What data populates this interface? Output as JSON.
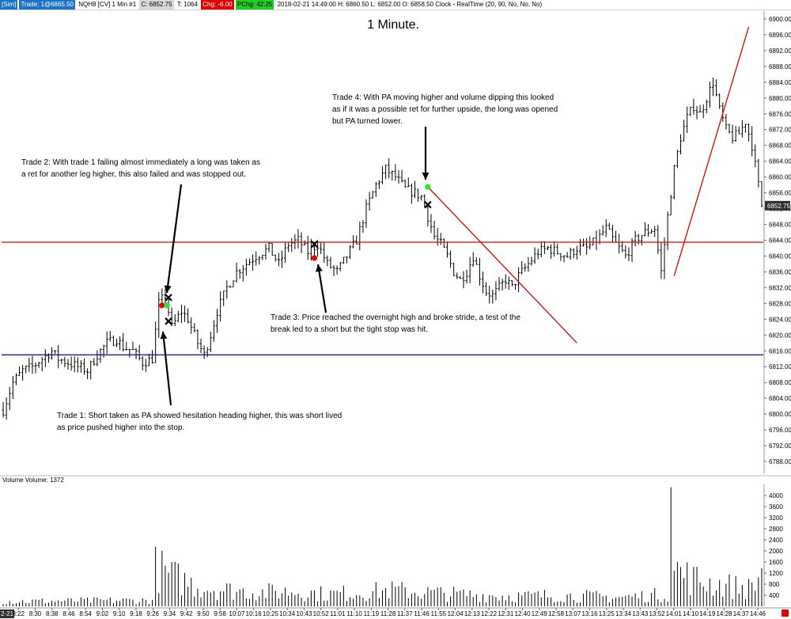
{
  "header": {
    "sim_label": "[Sim]",
    "trade_label": "Trade: 1@6865.50",
    "instrument": "NQH8 [CV]  1 Min  #1",
    "close_badge": "C: 6852.75",
    "tick": "T: 1064",
    "chg_badge": "Chg: -6.00",
    "pchg_badge": "PChg: 42.25",
    "bar_info": "2018-02-21 14:49:00  H: 6860.50  L: 6852.00  O: 6858.50  Clock - RealTime  (20, 90, No, No, No)"
  },
  "colors": {
    "price_line": "#000000",
    "red_line": "#e00000",
    "blue_line": "#0000cc",
    "green_dot": "#22ee22",
    "red_dot": "#ee0000",
    "current_price_bg": "#303030"
  },
  "chart_data": {
    "type": "candlestick",
    "title": "1 Minute.",
    "y_ticks": [
      "6900.00",
      "6896.00",
      "6892.00",
      "6888.00",
      "6884.00",
      "6880.00",
      "6876.00",
      "6872.00",
      "6868.00",
      "6864.00",
      "6860.00",
      "6856.00",
      "6852.00",
      "6848.00",
      "6844.00",
      "6840.00",
      "6836.00",
      "6832.00",
      "6828.00",
      "6824.00",
      "6820.00",
      "6816.00",
      "6812.00",
      "6808.00",
      "6804.00",
      "6800.00",
      "6796.00",
      "6792.00",
      "6788.00"
    ],
    "ylim": [
      6785,
      6902
    ],
    "current_price": "6852.75",
    "x_ticks": [
      "2-21",
      "8:22",
      "8:30",
      "8:38",
      "8:46",
      "8:54",
      "9:02",
      "9:10",
      "9:18",
      "9:26",
      "9:34",
      "9:42",
      "9:50",
      "9:58",
      "10:07",
      "10:16",
      "10:25",
      "10:34",
      "10:43",
      "10:52",
      "11:01",
      "11:10",
      "11:19",
      "11:28",
      "11:37",
      "11:46",
      "11:55",
      "12:04",
      "12:13",
      "12:22",
      "12:31",
      "12:40",
      "12:49",
      "12:58",
      "13:07",
      "13:16",
      "13:25",
      "13:34",
      "13:43",
      "13:52",
      "14:01",
      "14:10",
      "14:19",
      "14:28",
      "14:37",
      "14:46"
    ],
    "price_path": [
      [
        0,
        6801
      ],
      [
        3,
        6808
      ],
      [
        6,
        6811
      ],
      [
        9,
        6812
      ],
      [
        12,
        6814
      ],
      [
        15,
        6816
      ],
      [
        17,
        6814
      ],
      [
        20,
        6813
      ],
      [
        23,
        6812
      ],
      [
        26,
        6811
      ],
      [
        29,
        6815
      ],
      [
        32,
        6818
      ],
      [
        35,
        6819
      ],
      [
        37,
        6817
      ],
      [
        40,
        6816
      ],
      [
        43,
        6813
      ],
      [
        46,
        6814
      ],
      [
        48,
        6828
      ],
      [
        50,
        6830
      ],
      [
        52,
        6822
      ],
      [
        55,
        6826
      ],
      [
        57,
        6824
      ],
      [
        60,
        6818
      ],
      [
        62,
        6815
      ],
      [
        64,
        6820
      ],
      [
        66,
        6826
      ],
      [
        69,
        6832
      ],
      [
        72,
        6836
      ],
      [
        75,
        6838
      ],
      [
        78,
        6840
      ],
      [
        82,
        6842
      ],
      [
        85,
        6838
      ],
      [
        88,
        6843
      ],
      [
        91,
        6844
      ],
      [
        94,
        6841
      ],
      [
        97,
        6843
      ],
      [
        100,
        6838
      ],
      [
        103,
        6836
      ],
      [
        106,
        6840
      ],
      [
        109,
        6844
      ],
      [
        112,
        6852
      ],
      [
        115,
        6858
      ],
      [
        118,
        6862
      ],
      [
        121,
        6860
      ],
      [
        124,
        6857
      ],
      [
        127,
        6856
      ],
      [
        129,
        6855
      ],
      [
        131,
        6850
      ],
      [
        133,
        6845
      ],
      [
        135,
        6843
      ],
      [
        137,
        6840
      ],
      [
        139,
        6836
      ],
      [
        141,
        6834
      ],
      [
        143,
        6836
      ],
      [
        145,
        6840
      ],
      [
        147,
        6835
      ],
      [
        149,
        6831
      ],
      [
        151,
        6830
      ],
      [
        153,
        6832
      ],
      [
        155,
        6834
      ],
      [
        157,
        6832
      ],
      [
        159,
        6835
      ],
      [
        162,
        6838
      ],
      [
        165,
        6841
      ],
      [
        168,
        6842
      ],
      [
        171,
        6841
      ],
      [
        174,
        6840
      ],
      [
        177,
        6842
      ],
      [
        180,
        6842
      ],
      [
        183,
        6844
      ],
      [
        186,
        6847
      ],
      [
        189,
        6843
      ],
      [
        192,
        6840
      ],
      [
        195,
        6844
      ],
      [
        198,
        6846
      ],
      [
        201,
        6847
      ],
      [
        203,
        6836
      ],
      [
        205,
        6850
      ],
      [
        207,
        6862
      ],
      [
        209,
        6870
      ],
      [
        211,
        6875
      ],
      [
        213,
        6878
      ],
      [
        215,
        6876
      ],
      [
        217,
        6880
      ],
      [
        219,
        6884
      ],
      [
        221,
        6877
      ],
      [
        223,
        6872
      ],
      [
        225,
        6870
      ],
      [
        227,
        6871
      ],
      [
        229,
        6874
      ],
      [
        231,
        6868
      ],
      [
        233,
        6858
      ],
      [
        234,
        6852.75
      ]
    ],
    "bar_count": 235,
    "horizontal_lines": [
      {
        "price": 6843.5,
        "color": "red"
      },
      {
        "price": 6815,
        "color": "blue"
      }
    ],
    "trend_lines": [
      {
        "from": [
          131,
          6857.5
        ],
        "to": [
          177,
          6818
        ]
      },
      {
        "from": [
          207,
          6835
        ],
        "to": [
          230,
          6898
        ]
      }
    ],
    "markers": [
      {
        "type": "x",
        "bar": 51,
        "price": 6829.5
      },
      {
        "type": "x",
        "bar": 51,
        "price": 6823.5
      },
      {
        "type": "dot-red",
        "bar": 49,
        "price": 6827.5
      },
      {
        "type": "dot-green",
        "bar": 50.5,
        "price": 6827.5
      },
      {
        "type": "x",
        "bar": 96,
        "price": 6843
      },
      {
        "type": "dot-red",
        "bar": 96,
        "price": 6839.5
      },
      {
        "type": "dot-green",
        "bar": 131,
        "price": 6857.5
      },
      {
        "type": "x",
        "bar": 131,
        "price": 6853
      }
    ],
    "annotations": [
      {
        "lines": [
          "Trade 1:  Short taken as PA showed hesitation heading higher, this was short lived",
          "as price pushed higher into the stop."
        ]
      },
      {
        "lines": [
          "Trade 2:  With trade 1 failing almost immediately a long was taken as",
          "a ret for another leg higher, this also failed and was stopped out."
        ]
      },
      {
        "lines": [
          "Trade 3:  Price reached the overnight high and broke stride, a test of the",
          "break led to a short but the tight stop was hit."
        ]
      },
      {
        "lines": [
          "Trade 4:  With PA moving higher and volume dipping this looked",
          "as if it was a possible ret for further upside, the long was opened",
          "but PA turned lower."
        ]
      }
    ],
    "volume": {
      "title": "Volume  Volume: 1372",
      "y_ticks": [
        "4000",
        "3600",
        "3200",
        "2800",
        "2400",
        "2000",
        "1600",
        "1200",
        "800",
        "400"
      ],
      "ylim": [
        0,
        4400
      ],
      "profile": [
        [
          0,
          250
        ],
        [
          46,
          300
        ],
        [
          47,
          1900
        ],
        [
          52,
          1500
        ],
        [
          60,
          1000
        ],
        [
          70,
          800
        ],
        [
          80,
          700
        ],
        [
          90,
          750
        ],
        [
          100,
          600
        ],
        [
          110,
          700
        ],
        [
          120,
          800
        ],
        [
          130,
          700
        ],
        [
          140,
          600
        ],
        [
          150,
          550
        ],
        [
          160,
          500
        ],
        [
          170,
          550
        ],
        [
          180,
          500
        ],
        [
          190,
          450
        ],
        [
          200,
          550
        ],
        [
          205,
          600
        ],
        [
          206,
          4300
        ],
        [
          207,
          1900
        ],
        [
          212,
          1400
        ],
        [
          220,
          1100
        ],
        [
          230,
          900
        ],
        [
          234,
          1372
        ]
      ]
    }
  }
}
